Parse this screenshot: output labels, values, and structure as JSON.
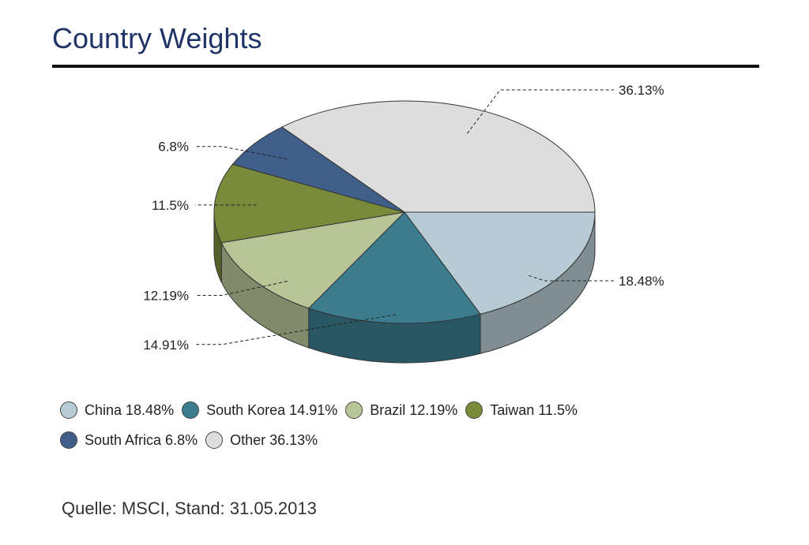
{
  "header": {
    "title": "Country Weights"
  },
  "chart_data": {
    "type": "pie",
    "title": "Country Weights",
    "slices": [
      {
        "name": "China",
        "value": 18.48,
        "label": "18.48%",
        "legend": "China 18.48%",
        "color": "#b7cbd4"
      },
      {
        "name": "South Korea",
        "value": 14.91,
        "label": "14.91%",
        "legend": "South Korea 14.91%",
        "color": "#3b7c8e"
      },
      {
        "name": "Brazil",
        "value": 12.19,
        "label": "12.19%",
        "legend": "Brazil 12.19%",
        "color": "#b8c597"
      },
      {
        "name": "Taiwan",
        "value": 11.5,
        "label": "11.5%",
        "legend": "Taiwan 11.5%",
        "color": "#798a3b"
      },
      {
        "name": "South Africa",
        "value": 6.8,
        "label": "6.8%",
        "legend": "South Africa 6.8%",
        "color": "#3f5f8a"
      },
      {
        "name": "Other",
        "value": 36.13,
        "label": "36.13%",
        "legend": "Other 36.13%",
        "color": "#dddddd"
      }
    ],
    "legend_position": "bottom",
    "style": "3d"
  },
  "footer": {
    "source": "Quelle: MSCI, Stand: 31.05.2013"
  }
}
